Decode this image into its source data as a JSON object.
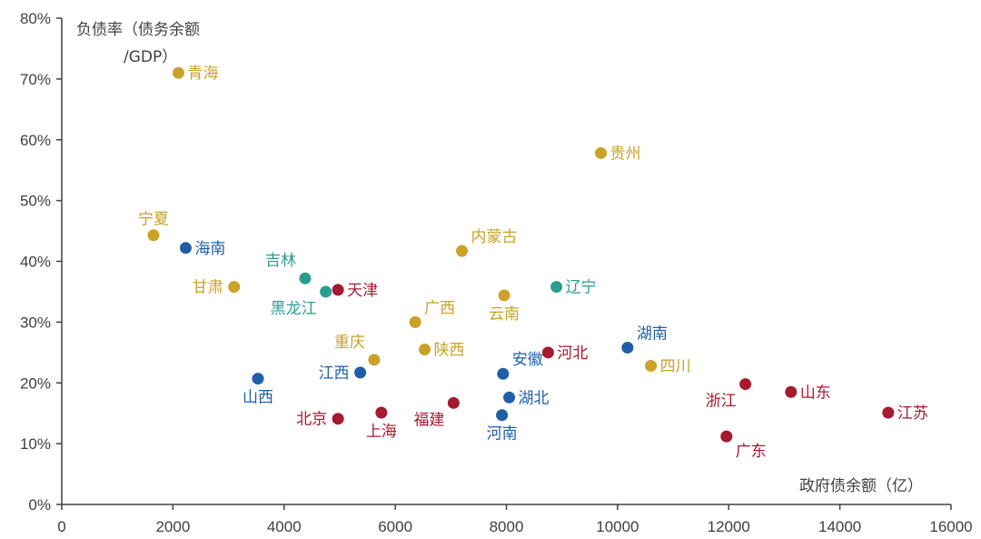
{
  "chart_data": {
    "type": "scatter",
    "xlabel": "政府债余额（亿）",
    "ylabel_lines": [
      "负债率（债务余额",
      "/GDP）"
    ],
    "xlim": [
      0,
      16000
    ],
    "ylim": [
      0,
      80
    ],
    "x_ticks": [
      "0",
      "2000",
      "4000",
      "6000",
      "8000",
      "10000",
      "12000",
      "14000",
      "16000"
    ],
    "y_ticks": [
      "0%",
      "10%",
      "20%",
      "30%",
      "40%",
      "50%",
      "60%",
      "70%",
      "80%"
    ],
    "colors": {
      "gold": "#C9A227",
      "blue": "#1F5FA8",
      "teal": "#2A9D8F",
      "red": "#A6192E"
    },
    "points": [
      {
        "name": "青海",
        "x": 2100,
        "y": 71,
        "color": "gold",
        "pos": "right"
      },
      {
        "name": "贵州",
        "x": 9700,
        "y": 57.8,
        "color": "gold",
        "pos": "right"
      },
      {
        "name": "宁夏",
        "x": 1650,
        "y": 44.3,
        "color": "gold",
        "pos": "above"
      },
      {
        "name": "海南",
        "x": 2230,
        "y": 42.2,
        "color": "blue",
        "pos": "right"
      },
      {
        "name": "内蒙古",
        "x": 7200,
        "y": 41.7,
        "color": "gold",
        "pos": "upright"
      },
      {
        "name": "吉林",
        "x": 4380,
        "y": 37.2,
        "color": "teal",
        "pos": "upleft"
      },
      {
        "name": "甘肃",
        "x": 3100,
        "y": 35.8,
        "color": "gold",
        "pos": "left"
      },
      {
        "name": "辽宁",
        "x": 8900,
        "y": 35.8,
        "color": "teal",
        "pos": "right"
      },
      {
        "name": "天津",
        "x": 4970,
        "y": 35.3,
        "color": "red",
        "pos": "right"
      },
      {
        "name": "黑龙江",
        "x": 4750,
        "y": 35,
        "color": "teal",
        "pos": "belowleft"
      },
      {
        "name": "云南",
        "x": 7960,
        "y": 34.4,
        "color": "gold",
        "pos": "below"
      },
      {
        "name": "广西",
        "x": 6360,
        "y": 30,
        "color": "gold",
        "pos": "upright"
      },
      {
        "name": "湖南",
        "x": 10180,
        "y": 25.8,
        "color": "blue",
        "pos": "upright"
      },
      {
        "name": "陕西",
        "x": 6530,
        "y": 25.5,
        "color": "gold",
        "pos": "right"
      },
      {
        "name": "河北",
        "x": 8750,
        "y": 25,
        "color": "red",
        "pos": "right"
      },
      {
        "name": "重庆",
        "x": 5620,
        "y": 23.8,
        "color": "gold",
        "pos": "upleft"
      },
      {
        "name": "四川",
        "x": 10600,
        "y": 22.8,
        "color": "gold",
        "pos": "right"
      },
      {
        "name": "江西",
        "x": 5370,
        "y": 21.7,
        "color": "blue",
        "pos": "left"
      },
      {
        "name": "安徽",
        "x": 7940,
        "y": 21.5,
        "color": "blue",
        "pos": "upright"
      },
      {
        "name": "山西",
        "x": 3530,
        "y": 20.7,
        "color": "blue",
        "pos": "below"
      },
      {
        "name": "浙江",
        "x": 12300,
        "y": 19.8,
        "color": "red",
        "pos": "belowleft"
      },
      {
        "name": "山东",
        "x": 13120,
        "y": 18.5,
        "color": "red",
        "pos": "right"
      },
      {
        "name": "湖北",
        "x": 8050,
        "y": 17.6,
        "color": "blue",
        "pos": "right"
      },
      {
        "name": "福建",
        "x": 7050,
        "y": 16.7,
        "color": "red",
        "pos": "belowleft"
      },
      {
        "name": "河南",
        "x": 7920,
        "y": 14.7,
        "color": "blue",
        "pos": "below"
      },
      {
        "name": "上海",
        "x": 5750,
        "y": 15.1,
        "color": "red",
        "pos": "below"
      },
      {
        "name": "江苏",
        "x": 14870,
        "y": 15.1,
        "color": "red",
        "pos": "right"
      },
      {
        "name": "北京",
        "x": 4970,
        "y": 14.1,
        "color": "red",
        "pos": "left"
      },
      {
        "name": "广东",
        "x": 11960,
        "y": 11.2,
        "color": "red",
        "pos": "belowright"
      }
    ]
  }
}
